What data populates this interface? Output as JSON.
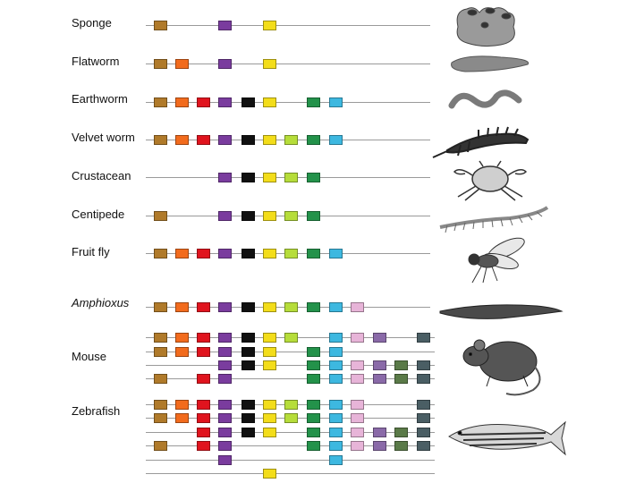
{
  "gene_colors": [
    "#b07a2a",
    "#f26b1d",
    "#e0141e",
    "#7a3c9e",
    "#111111",
    "#f3dd1a",
    "#b6dd3a",
    "#23924a",
    "#3db8e0",
    "#e7b4d8",
    "#8a6aa8",
    "#5a7a48",
    "#4a5e64"
  ],
  "rows": [
    {
      "label": "Sponge",
      "italic": false,
      "lines": [
        [
          0,
          3,
          5
        ]
      ]
    },
    {
      "label": "Flatworm",
      "italic": false,
      "lines": [
        [
          0,
          1,
          3,
          5
        ]
      ]
    },
    {
      "label": "Earthworm",
      "italic": false,
      "lines": [
        [
          0,
          1,
          2,
          3,
          4,
          5,
          7,
          8
        ]
      ]
    },
    {
      "label": "Velvet worm",
      "italic": false,
      "lines": [
        [
          0,
          1,
          2,
          3,
          4,
          5,
          6,
          7,
          8
        ]
      ]
    },
    {
      "label": "Crustacean",
      "italic": false,
      "lines": [
        [
          3,
          4,
          5,
          6,
          7
        ]
      ]
    },
    {
      "label": "Centipede",
      "italic": false,
      "lines": [
        [
          0,
          3,
          4,
          5,
          6,
          7
        ]
      ]
    },
    {
      "label": "Fruit fly",
      "italic": false,
      "lines": [
        [
          0,
          1,
          2,
          3,
          4,
          5,
          6,
          7,
          8
        ]
      ]
    },
    {
      "label": "Amphioxus",
      "italic": true,
      "lines": [
        [
          0,
          1,
          2,
          3,
          4,
          5,
          6,
          7,
          8,
          9
        ]
      ]
    },
    {
      "label": "Mouse",
      "italic": false,
      "lines": [
        [
          0,
          1,
          2,
          3,
          4,
          5,
          6,
          8,
          9,
          10,
          12
        ],
        [
          0,
          1,
          2,
          3,
          4,
          5,
          7,
          8
        ],
        [
          3,
          4,
          5,
          7,
          8,
          9,
          10,
          11,
          12
        ],
        [
          0,
          2,
          3,
          7,
          8,
          9,
          10,
          11,
          12
        ]
      ]
    },
    {
      "label": "Zebrafish",
      "italic": false,
      "lines": [
        [
          0,
          1,
          2,
          3,
          4,
          5,
          6,
          7,
          8,
          9,
          12
        ],
        [
          0,
          1,
          2,
          3,
          4,
          5,
          6,
          7,
          8,
          9,
          12
        ],
        [
          2,
          3,
          4,
          5,
          7,
          8,
          9,
          10,
          11,
          12
        ],
        [
          0,
          2,
          3,
          7,
          8,
          9,
          10,
          11,
          12
        ],
        [
          3,
          8
        ],
        [
          5
        ]
      ]
    }
  ],
  "animals": [
    "sponge-illustration",
    "flatworm-illustration",
    "earthworm-illustration",
    "velvet-worm-illustration",
    "crab-illustration",
    "centipede-illustration",
    "fruit-fly-illustration",
    "amphioxus-illustration",
    "mouse-illustration",
    "zebrafish-illustration"
  ]
}
